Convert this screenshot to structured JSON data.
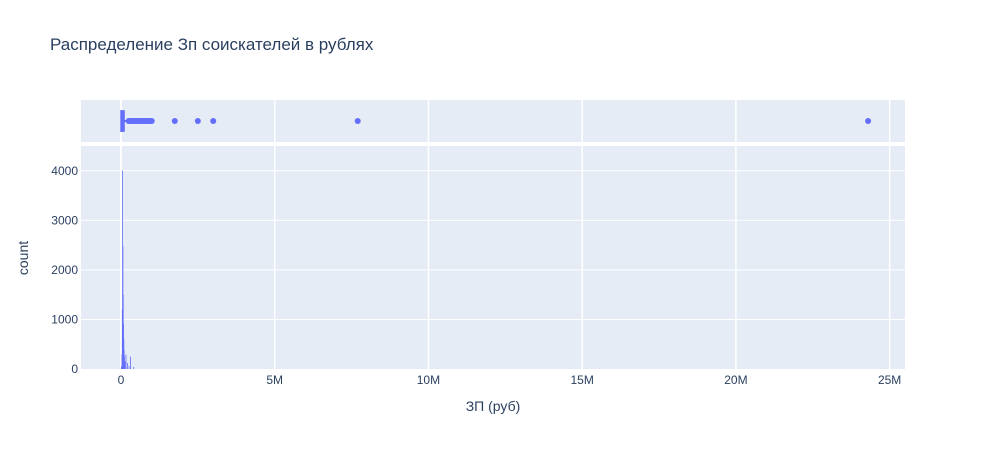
{
  "colors": {
    "plot_bg": "#e5ecf6",
    "grid": "#ffffff",
    "marker": "#636efa",
    "text": "#2a3f5f"
  },
  "chart_data": {
    "type": "histogram with box-plot marginal",
    "title": "Распределение Зп соискателей в рублях",
    "xlabel": "ЗП (руб)",
    "ylabel": "count",
    "xlim": [
      -1300000,
      25500000
    ],
    "ylim": [
      0,
      4500
    ],
    "x_ticks": [
      {
        "value": 0,
        "label": "0"
      },
      {
        "value": 5000000,
        "label": "5M"
      },
      {
        "value": 10000000,
        "label": "10M"
      },
      {
        "value": 15000000,
        "label": "15M"
      },
      {
        "value": 20000000,
        "label": "20M"
      },
      {
        "value": 25000000,
        "label": "25M"
      }
    ],
    "y_ticks": [
      {
        "value": 0,
        "label": "0"
      },
      {
        "value": 1000,
        "label": "1000"
      },
      {
        "value": 2000,
        "label": "2000"
      },
      {
        "value": 3000,
        "label": "3000"
      },
      {
        "value": 4000,
        "label": "4000"
      }
    ],
    "bin_width": 10000,
    "histogram_bins": [
      {
        "x": 0,
        "count": 40
      },
      {
        "x": 10000,
        "count": 60
      },
      {
        "x": 20000,
        "count": 300
      },
      {
        "x": 30000,
        "count": 1200
      },
      {
        "x": 40000,
        "count": 4000
      },
      {
        "x": 50000,
        "count": 2480
      },
      {
        "x": 60000,
        "count": 1500
      },
      {
        "x": 70000,
        "count": 900
      },
      {
        "x": 80000,
        "count": 600
      },
      {
        "x": 90000,
        "count": 380
      },
      {
        "x": 100000,
        "count": 250
      },
      {
        "x": 120000,
        "count": 150
      },
      {
        "x": 150000,
        "count": 290
      },
      {
        "x": 200000,
        "count": 120
      },
      {
        "x": 250000,
        "count": 60
      },
      {
        "x": 300000,
        "count": 250
      },
      {
        "x": 400000,
        "count": 40
      }
    ],
    "box": {
      "q1": 30000,
      "median": 50000,
      "q3": 100000,
      "lowerfence": 10000,
      "upperfence": 200000,
      "outliers": [
        250000,
        300000,
        350000,
        400000,
        450000,
        500000,
        550000,
        600000,
        650000,
        700000,
        750000,
        800000,
        850000,
        900000,
        950000,
        1000000,
        1750000,
        2500000,
        3000000,
        7700000,
        24300000
      ]
    }
  }
}
